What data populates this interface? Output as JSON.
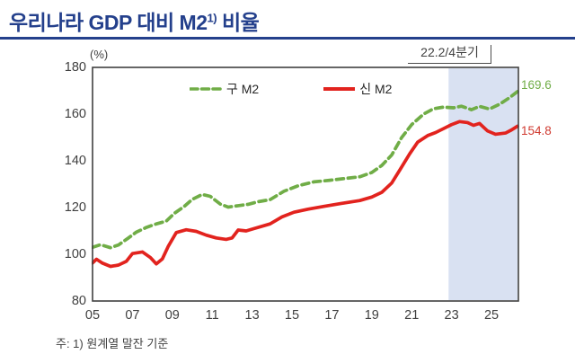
{
  "header": {
    "title_prefix": "우리나라 GDP 대비 M2",
    "title_sup": "1)",
    "title_suffix": " 비율",
    "accent_color": "#24408C"
  },
  "chart": {
    "unit_label": "(%)",
    "annotation": {
      "label": "22.2/4분기"
    },
    "legend": [
      {
        "label": "구 M2",
        "color": "#70AD47",
        "style": "dashed"
      },
      {
        "label": "신 M2",
        "color": "#E2231E",
        "style": "solid"
      }
    ],
    "y_axis": {
      "ticks": [
        "180",
        "160",
        "140",
        "120",
        "100",
        "80"
      ],
      "values": [
        180,
        160,
        140,
        120,
        100,
        80
      ]
    },
    "x_axis": {
      "ticks": [
        "05",
        "07",
        "09",
        "11",
        "13",
        "15",
        "17",
        "19",
        "21",
        "23",
        "25"
      ],
      "years": [
        2005,
        2007,
        2009,
        2011,
        2013,
        2015,
        2017,
        2019,
        2021,
        2023,
        2025
      ]
    },
    "end_labels": [
      {
        "text": "169.6",
        "color": "#70AD47"
      },
      {
        "text": "154.8",
        "color": "#D03A30"
      }
    ],
    "shaded_region": {
      "from": 2022.85,
      "to": 2026.35,
      "color": "#D9E1F2"
    },
    "frame_color": "#404040"
  },
  "chart_data": {
    "type": "line",
    "title": "우리나라 GDP 대비 M2 비율",
    "ylabel": "(%)",
    "ylim": [
      80,
      180
    ],
    "xlim": [
      2005,
      2026.35
    ],
    "grid": false,
    "legend_position": "top-inside",
    "highlight": {
      "label": "22.2/4분기",
      "from": 2022.85,
      "to": 2026.35
    },
    "series": [
      {
        "name": "구 M2",
        "color": "#70AD47",
        "dash": true,
        "end_value": 169.6,
        "points": [
          [
            2005.0,
            103.0
          ],
          [
            2005.4,
            104.1
          ],
          [
            2005.9,
            102.8
          ],
          [
            2006.3,
            104.0
          ],
          [
            2006.8,
            107.0
          ],
          [
            2007.2,
            109.5
          ],
          [
            2007.7,
            111.5
          ],
          [
            2008.2,
            113.0
          ],
          [
            2008.7,
            114.2
          ],
          [
            2009.1,
            117.5
          ],
          [
            2009.6,
            120.5
          ],
          [
            2010.0,
            123.5
          ],
          [
            2010.5,
            125.6
          ],
          [
            2010.9,
            124.8
          ],
          [
            2011.4,
            121.5
          ],
          [
            2011.8,
            120.2
          ],
          [
            2012.3,
            120.8
          ],
          [
            2012.8,
            121.4
          ],
          [
            2013.3,
            122.5
          ],
          [
            2013.9,
            123.4
          ],
          [
            2014.6,
            127.0
          ],
          [
            2015.3,
            129.3
          ],
          [
            2016.1,
            131.0
          ],
          [
            2016.9,
            131.7
          ],
          [
            2017.6,
            132.4
          ],
          [
            2018.4,
            133.2
          ],
          [
            2019.0,
            135.0
          ],
          [
            2019.5,
            138.0
          ],
          [
            2020.0,
            142.5
          ],
          [
            2020.5,
            150.0
          ],
          [
            2021.0,
            155.5
          ],
          [
            2021.6,
            160.0
          ],
          [
            2022.1,
            162.3
          ],
          [
            2022.6,
            163.0
          ],
          [
            2023.1,
            162.7
          ],
          [
            2023.5,
            163.4
          ],
          [
            2024.0,
            161.9
          ],
          [
            2024.4,
            163.3
          ],
          [
            2024.9,
            162.2
          ],
          [
            2025.4,
            164.2
          ],
          [
            2025.9,
            167.0
          ],
          [
            2026.3,
            169.6
          ]
        ]
      },
      {
        "name": "신 M2",
        "color": "#E2231E",
        "dash": false,
        "end_value": 154.8,
        "points": [
          [
            2005.0,
            96.3
          ],
          [
            2005.2,
            97.9
          ],
          [
            2005.5,
            96.2
          ],
          [
            2005.9,
            94.8
          ],
          [
            2006.3,
            95.4
          ],
          [
            2006.7,
            97.0
          ],
          [
            2007.0,
            100.3
          ],
          [
            2007.5,
            101.0
          ],
          [
            2007.9,
            98.6
          ],
          [
            2008.2,
            95.9
          ],
          [
            2008.5,
            98.0
          ],
          [
            2008.8,
            103.5
          ],
          [
            2009.2,
            109.3
          ],
          [
            2009.7,
            110.5
          ],
          [
            2010.2,
            109.8
          ],
          [
            2010.7,
            108.2
          ],
          [
            2011.2,
            107.0
          ],
          [
            2011.7,
            106.4
          ],
          [
            2012.0,
            107.0
          ],
          [
            2012.3,
            110.4
          ],
          [
            2012.7,
            110.0
          ],
          [
            2013.1,
            111.0
          ],
          [
            2013.9,
            113.0
          ],
          [
            2014.5,
            116.0
          ],
          [
            2015.1,
            118.0
          ],
          [
            2015.8,
            119.3
          ],
          [
            2016.6,
            120.5
          ],
          [
            2017.5,
            121.8
          ],
          [
            2018.4,
            123.0
          ],
          [
            2019.0,
            124.5
          ],
          [
            2019.5,
            126.5
          ],
          [
            2020.0,
            130.5
          ],
          [
            2020.4,
            136.0
          ],
          [
            2020.9,
            143.0
          ],
          [
            2021.3,
            148.0
          ],
          [
            2021.8,
            150.8
          ],
          [
            2022.2,
            152.1
          ],
          [
            2022.6,
            153.8
          ],
          [
            2023.0,
            155.5
          ],
          [
            2023.4,
            156.8
          ],
          [
            2023.8,
            156.4
          ],
          [
            2024.1,
            155.2
          ],
          [
            2024.4,
            156.0
          ],
          [
            2024.8,
            152.8
          ],
          [
            2025.2,
            151.4
          ],
          [
            2025.7,
            151.9
          ],
          [
            2026.0,
            153.2
          ],
          [
            2026.3,
            154.8
          ]
        ]
      }
    ]
  },
  "footer": {
    "note": "주: 1) 원계열 말잔 기준"
  }
}
